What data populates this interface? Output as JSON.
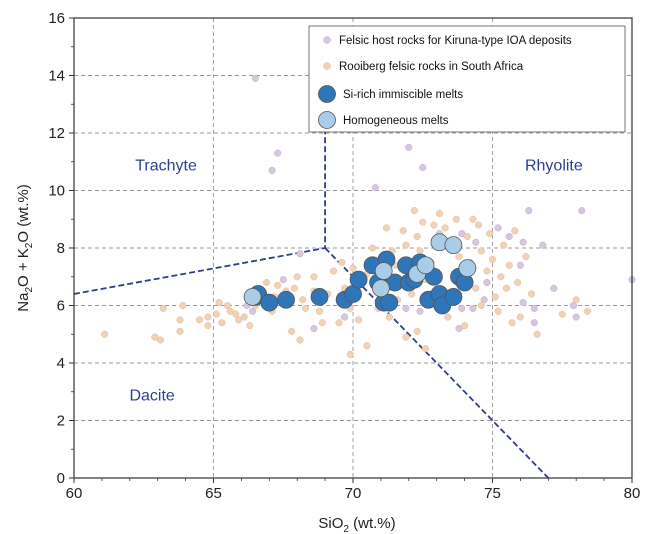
{
  "chart_data": {
    "type": "scatter",
    "title": "",
    "xlabel": {
      "main": "SiO",
      "sub": "2",
      "tail": " (wt.%)"
    },
    "ylabel": {
      "p1": "Na",
      "s1": "2",
      "p2": "O + K",
      "s2": "2",
      "p3": "O (wt.%)"
    },
    "xlim": [
      60,
      80
    ],
    "ylim": [
      0,
      16
    ],
    "xticks": [
      60,
      65,
      70,
      75,
      80
    ],
    "yticks": [
      0,
      2,
      4,
      6,
      8,
      10,
      12,
      14,
      16
    ],
    "grid": true,
    "legend_position": "top-right",
    "fields": [
      {
        "name": "Trachyte",
        "x": 63.3,
        "y": 10.7
      },
      {
        "name": "Rhyolite",
        "x": 77.2,
        "y": 10.7
      },
      {
        "name": "Dacite",
        "x": 62.8,
        "y": 2.7
      }
    ],
    "boundaries": [
      {
        "points": [
          [
            60,
            6.4
          ],
          [
            69,
            8.0
          ],
          [
            69,
            12.4
          ]
        ]
      },
      {
        "points": [
          [
            69,
            8.0
          ],
          [
            77,
            0
          ]
        ]
      }
    ],
    "colors": {
      "kiruna": "#d6c7de",
      "rooiberg": "#f0d3b7",
      "si_rich": "#2e76b8",
      "homogeneous": "#a9cde9",
      "boundary": "#2e3f8f",
      "field_text": "#2e3f8f"
    },
    "series": [
      {
        "name": "Felsic host rocks for Kiruna-type IOA deposits",
        "marker": "small-circle",
        "points": [
          [
            66.5,
            13.9
          ],
          [
            67.3,
            11.3
          ],
          [
            67.1,
            10.7
          ],
          [
            72,
            11.5
          ],
          [
            72.5,
            10.8
          ],
          [
            70.8,
            10.1
          ],
          [
            68.1,
            7.8
          ],
          [
            78.2,
            9.3
          ],
          [
            76.3,
            9.3
          ],
          [
            75.6,
            8.4
          ],
          [
            76.1,
            8.2
          ],
          [
            76.8,
            8.1
          ],
          [
            76.0,
            7.4
          ],
          [
            80.0,
            6.9
          ],
          [
            77.9,
            6.0
          ],
          [
            78.0,
            5.6
          ],
          [
            76.5,
            5.9
          ],
          [
            76.1,
            6.1
          ],
          [
            74.7,
            6.2
          ],
          [
            74.3,
            5.9
          ],
          [
            73.5,
            6.1
          ],
          [
            73.9,
            5.9
          ],
          [
            73.8,
            5.2
          ],
          [
            72.4,
            5.8
          ],
          [
            69.7,
            5.6
          ],
          [
            68.6,
            5.2
          ],
          [
            66.4,
            5.8
          ],
          [
            67.5,
            6.9
          ],
          [
            73.9,
            8.5
          ],
          [
            74.4,
            8.2
          ],
          [
            75.2,
            8.7
          ],
          [
            74.8,
            6.8
          ],
          [
            72.8,
            6.4
          ],
          [
            71.9,
            5.9
          ],
          [
            66.2,
            6.0
          ],
          [
            73.1,
            8.5
          ],
          [
            76.5,
            5.4
          ],
          [
            77.2,
            6.6
          ]
        ]
      },
      {
        "name": "Rooiberg felsic rocks in South Africa",
        "marker": "small-circle",
        "points": [
          [
            61.1,
            5.0
          ],
          [
            62.9,
            4.9
          ],
          [
            63.1,
            4.8
          ],
          [
            63.2,
            5.9
          ],
          [
            63.8,
            5.5
          ],
          [
            63.8,
            5.1
          ],
          [
            63.9,
            6.0
          ],
          [
            64.5,
            5.5
          ],
          [
            64.8,
            5.6
          ],
          [
            64.8,
            5.3
          ],
          [
            65.1,
            5.7
          ],
          [
            65.3,
            5.4
          ],
          [
            65.6,
            5.8
          ],
          [
            65.2,
            6.1
          ],
          [
            65.5,
            6.0
          ],
          [
            65.9,
            5.5
          ],
          [
            66.1,
            5.6
          ],
          [
            66.3,
            5.3
          ],
          [
            65.8,
            5.7
          ],
          [
            66.5,
            6.0
          ],
          [
            66.8,
            6.4
          ],
          [
            66.9,
            6.8
          ],
          [
            67.2,
            6.3
          ],
          [
            67.1,
            5.8
          ],
          [
            67.3,
            6.7
          ],
          [
            67.6,
            6.5
          ],
          [
            67.9,
            6.6
          ],
          [
            68.0,
            7.0
          ],
          [
            68.2,
            6.2
          ],
          [
            68.3,
            5.9
          ],
          [
            68.6,
            6.5
          ],
          [
            68.6,
            7.0
          ],
          [
            68.8,
            5.8
          ],
          [
            68.9,
            5.4
          ],
          [
            69.1,
            6.4
          ],
          [
            69.3,
            7.2
          ],
          [
            69.5,
            5.4
          ],
          [
            69.6,
            7.5
          ],
          [
            69.7,
            6.6
          ],
          [
            69.9,
            5.9
          ],
          [
            70.0,
            7.3
          ],
          [
            70.2,
            5.5
          ],
          [
            70.3,
            6.8
          ],
          [
            70.5,
            7.1
          ],
          [
            70.7,
            8.0
          ],
          [
            70.9,
            5.9
          ],
          [
            71.1,
            6.5
          ],
          [
            71.2,
            8.7
          ],
          [
            71.3,
            5.6
          ],
          [
            71.4,
            7.9
          ],
          [
            71.5,
            7.4
          ],
          [
            71.6,
            6.2
          ],
          [
            71.8,
            8.6
          ],
          [
            71.9,
            8.1
          ],
          [
            72.0,
            7.2
          ],
          [
            72.1,
            6.4
          ],
          [
            72.2,
            9.3
          ],
          [
            72.3,
            8.4
          ],
          [
            72.3,
            5.1
          ],
          [
            72.4,
            7.9
          ],
          [
            72.5,
            8.9
          ],
          [
            72.6,
            6.9
          ],
          [
            72.6,
            4.5
          ],
          [
            72.8,
            7.5
          ],
          [
            72.9,
            8.8
          ],
          [
            73.0,
            7.1
          ],
          [
            73.1,
            9.2
          ],
          [
            73.2,
            6.3
          ],
          [
            73.3,
            8.7
          ],
          [
            73.4,
            5.6
          ],
          [
            73.6,
            8.0
          ],
          [
            73.7,
            9.0
          ],
          [
            73.8,
            7.7
          ],
          [
            73.9,
            6.9
          ],
          [
            74.0,
            5.3
          ],
          [
            74.1,
            8.4
          ],
          [
            74.2,
            7.5
          ],
          [
            74.3,
            9.0
          ],
          [
            74.4,
            6.6
          ],
          [
            74.5,
            8.8
          ],
          [
            74.6,
            7.9
          ],
          [
            74.6,
            6.0
          ],
          [
            74.8,
            7.2
          ],
          [
            74.9,
            8.5
          ],
          [
            75.0,
            7.6
          ],
          [
            75.1,
            6.3
          ],
          [
            75.2,
            5.8
          ],
          [
            75.3,
            7.0
          ],
          [
            75.4,
            8.1
          ],
          [
            75.5,
            6.6
          ],
          [
            75.6,
            7.4
          ],
          [
            75.7,
            5.4
          ],
          [
            75.8,
            8.6
          ],
          [
            75.9,
            6.8
          ],
          [
            76.0,
            5.6
          ],
          [
            76.2,
            7.7
          ],
          [
            76.4,
            6.4
          ],
          [
            76.6,
            5.0
          ],
          [
            77.5,
            5.7
          ],
          [
            78.0,
            6.2
          ],
          [
            78.4,
            5.8
          ],
          [
            69.9,
            4.3
          ],
          [
            70.5,
            4.6
          ],
          [
            71.9,
            4.9
          ],
          [
            68.1,
            4.8
          ],
          [
            67.8,
            5.1
          ],
          [
            73.3,
            8.1
          ]
        ]
      },
      {
        "name": "Si-rich immiscible melts",
        "marker": "large-circle",
        "points": [
          [
            66.5,
            6.3
          ],
          [
            66.6,
            6.4
          ],
          [
            67.0,
            6.1
          ],
          [
            67.6,
            6.2
          ],
          [
            68.8,
            6.3
          ],
          [
            69.7,
            6.2
          ],
          [
            70.0,
            6.4
          ],
          [
            70.2,
            6.9
          ],
          [
            70.7,
            7.4
          ],
          [
            70.9,
            6.8
          ],
          [
            71.1,
            6.1
          ],
          [
            71.2,
            7.6
          ],
          [
            71.3,
            6.1
          ],
          [
            71.5,
            6.8
          ],
          [
            71.9,
            7.4
          ],
          [
            72.0,
            6.8
          ],
          [
            72.2,
            6.9
          ],
          [
            72.4,
            7.5
          ],
          [
            72.6,
            7.3
          ],
          [
            72.7,
            6.2
          ],
          [
            72.9,
            7.0
          ],
          [
            73.1,
            6.4
          ],
          [
            73.2,
            6.0
          ],
          [
            73.6,
            6.3
          ],
          [
            73.8,
            7.0
          ],
          [
            74.0,
            6.8
          ]
        ]
      },
      {
        "name": "Homogeneous melts",
        "marker": "large-circle",
        "points": [
          [
            66.4,
            6.3
          ],
          [
            71.0,
            6.6
          ],
          [
            71.1,
            7.2
          ],
          [
            72.3,
            7.1
          ],
          [
            72.6,
            7.4
          ],
          [
            73.1,
            8.2
          ],
          [
            73.6,
            8.1
          ],
          [
            74.1,
            7.3
          ]
        ]
      }
    ]
  }
}
